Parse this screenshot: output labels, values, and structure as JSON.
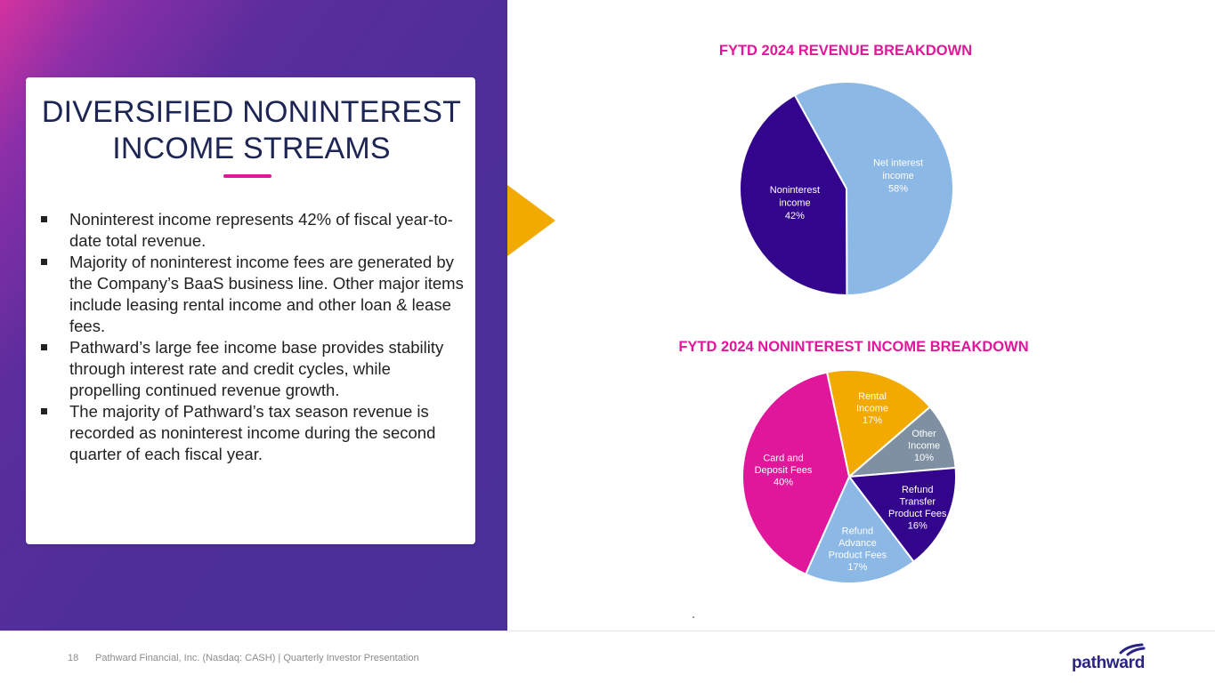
{
  "slide": {
    "title_line1": "DIVERSIFIED NONINTEREST",
    "title_line2": "INCOME STREAMS",
    "bullets": [
      "Noninterest income represents 42% of fiscal year-to-date total revenue.",
      "Majority of noninterest income fees are generated by the Company’s BaaS business line. Other major items include leasing rental income and other loan & lease fees.",
      "Pathward’s large fee income base provides stability through interest rate and credit cycles, while propelling continued revenue growth.",
      "The majority of Pathward’s tax season revenue is recorded as noninterest income during the second quarter of each fiscal year."
    ]
  },
  "colors": {
    "accent_pink": "#e0179a",
    "arrow_gold": "#f2a900",
    "title_navy": "#1c2553"
  },
  "chart_data": [
    {
      "type": "pie",
      "title": "FYTD 2024 REVENUE BREAKDOWN",
      "slices": [
        {
          "name": "Net interest income",
          "label_lines": [
            "Net interest",
            "income"
          ],
          "value": 58,
          "pct_label": "58%",
          "color": "#8cb8e6",
          "text_color": "#ffffff"
        },
        {
          "name": "Noninterest income",
          "label_lines": [
            "Noninterest",
            "income"
          ],
          "value": 42,
          "pct_label": "42%",
          "color": "#33058d",
          "text_color": "#ffffff"
        }
      ]
    },
    {
      "type": "pie",
      "title": "FYTD 2024 NONINTEREST INCOME BREAKDOWN",
      "slices": [
        {
          "name": "Rental Income",
          "label_lines": [
            "Rental",
            "Income"
          ],
          "value": 17,
          "pct_label": "17%",
          "color": "#f2a900",
          "text_color": "#ffffff"
        },
        {
          "name": "Other Income",
          "label_lines": [
            "Other",
            "Income"
          ],
          "value": 10,
          "pct_label": "10%",
          "color": "#7e90a1",
          "text_color": "#ffffff"
        },
        {
          "name": "Refund Transfer Product Fees",
          "label_lines": [
            "Refund",
            "Transfer",
            "Product Fees"
          ],
          "value": 16,
          "pct_label": "16%",
          "color": "#33058d",
          "text_color": "#ffffff"
        },
        {
          "name": "Refund Advance Product Fees",
          "label_lines": [
            "Refund",
            "Advance",
            "Product Fees"
          ],
          "value": 17,
          "pct_label": "17%",
          "color": "#8cb8e6",
          "text_color": "#ffffff"
        },
        {
          "name": "Card and Deposit Fees",
          "label_lines": [
            "Card and",
            "Deposit Fees"
          ],
          "value": 40,
          "pct_label": "40%",
          "color": "#e0179a",
          "text_color": "#ffffff"
        }
      ]
    }
  ],
  "footer": {
    "page_number": "18",
    "text": "Pathward Financial, Inc. (Nasdaq: CASH) | Quarterly Investor Presentation",
    "logo_text": "pathward"
  }
}
